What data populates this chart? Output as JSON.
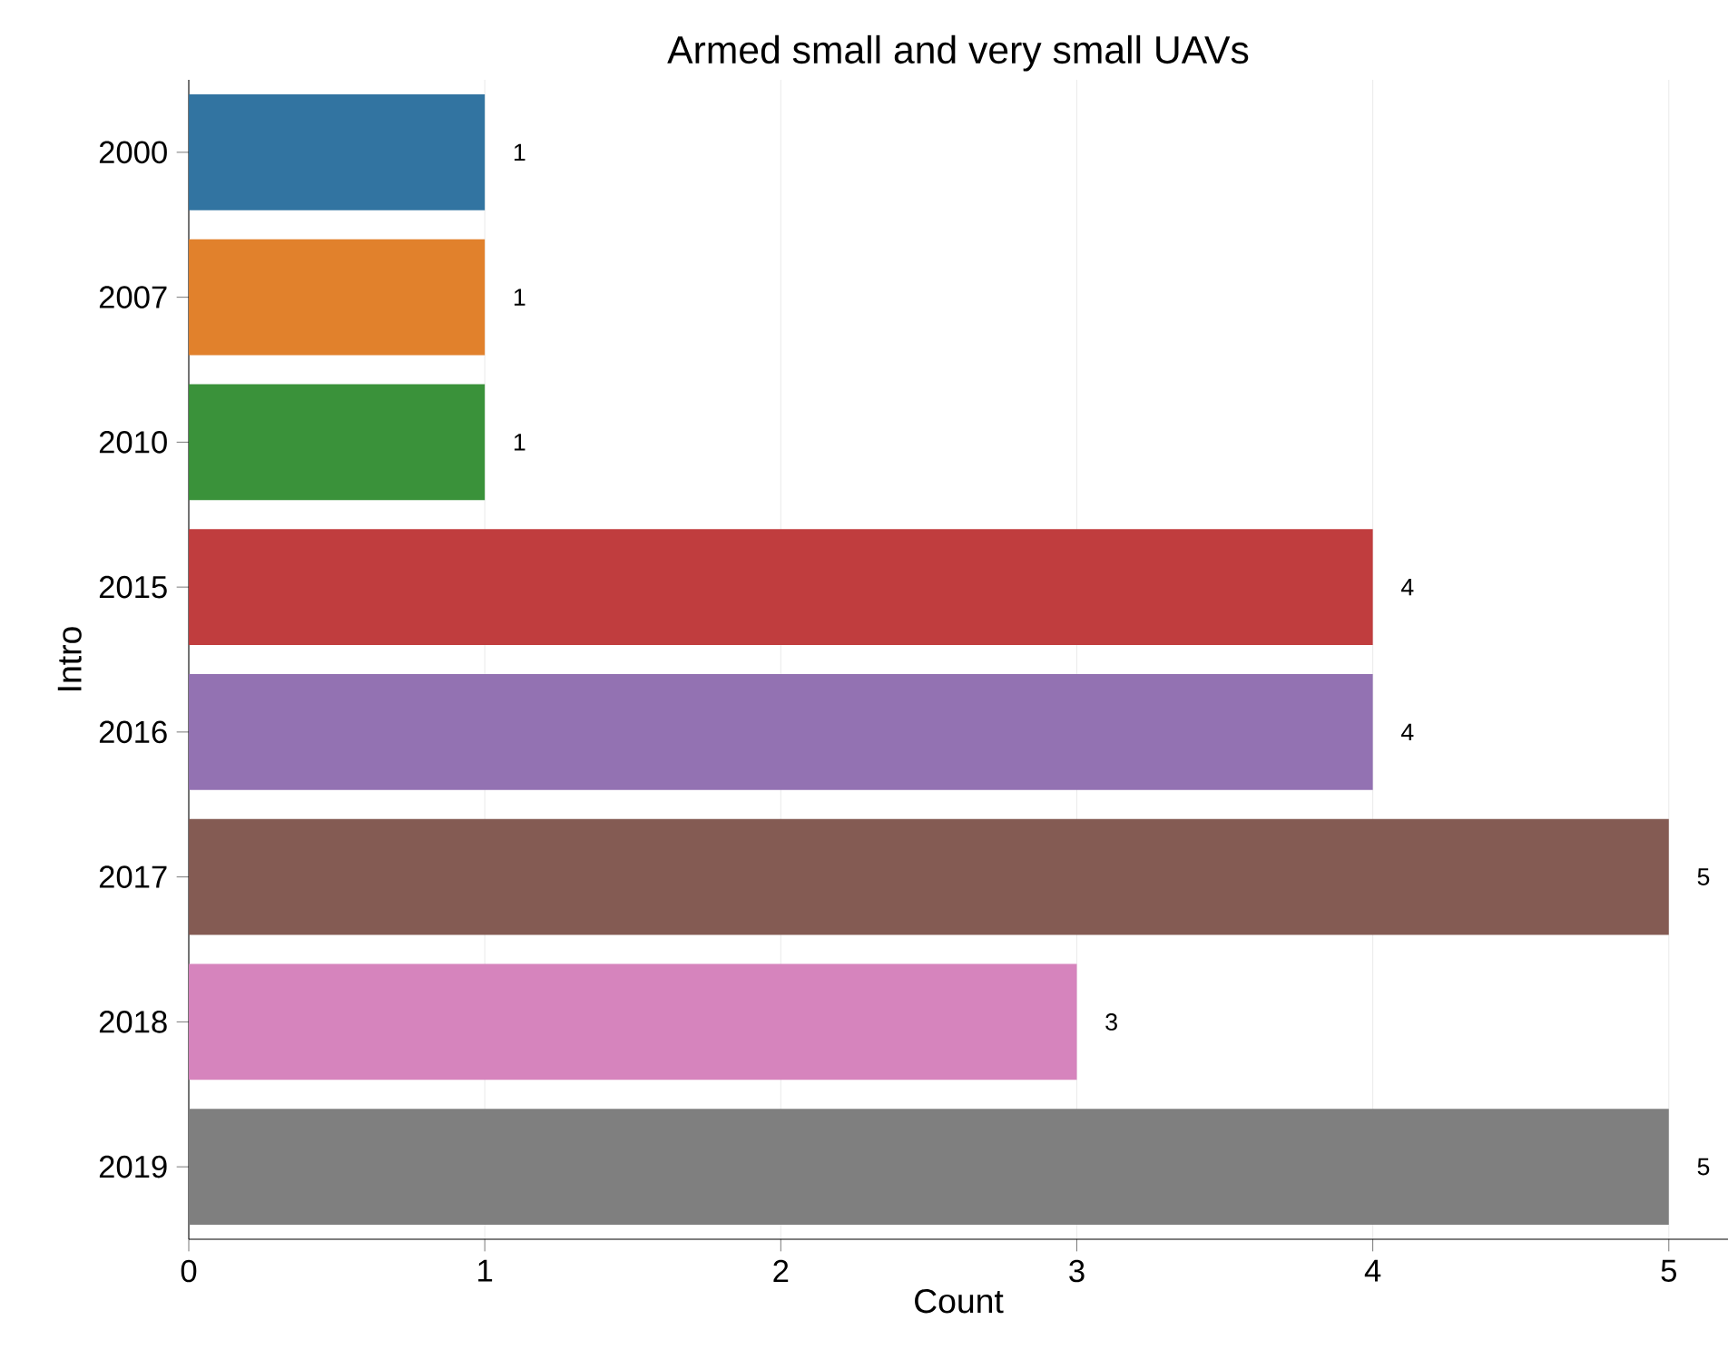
{
  "chart_data": {
    "type": "bar",
    "orientation": "horizontal",
    "title": "Armed small and very small UAVs",
    "xlabel": "Count",
    "ylabel": "Intro",
    "categories": [
      "2000",
      "2007",
      "2010",
      "2015",
      "2016",
      "2017",
      "2018",
      "2019"
    ],
    "values": [
      1,
      1,
      1,
      4,
      4,
      5,
      3,
      5
    ],
    "colors": [
      "#3274a1",
      "#e1812c",
      "#3a923a",
      "#c03d3e",
      "#9372b2",
      "#845b53",
      "#d684bd",
      "#7f7f7f"
    ],
    "xlim": [
      0,
      5.2
    ],
    "xticks": [
      0,
      1,
      2,
      3,
      4,
      5
    ],
    "grid": "x",
    "data_labels": true
  }
}
